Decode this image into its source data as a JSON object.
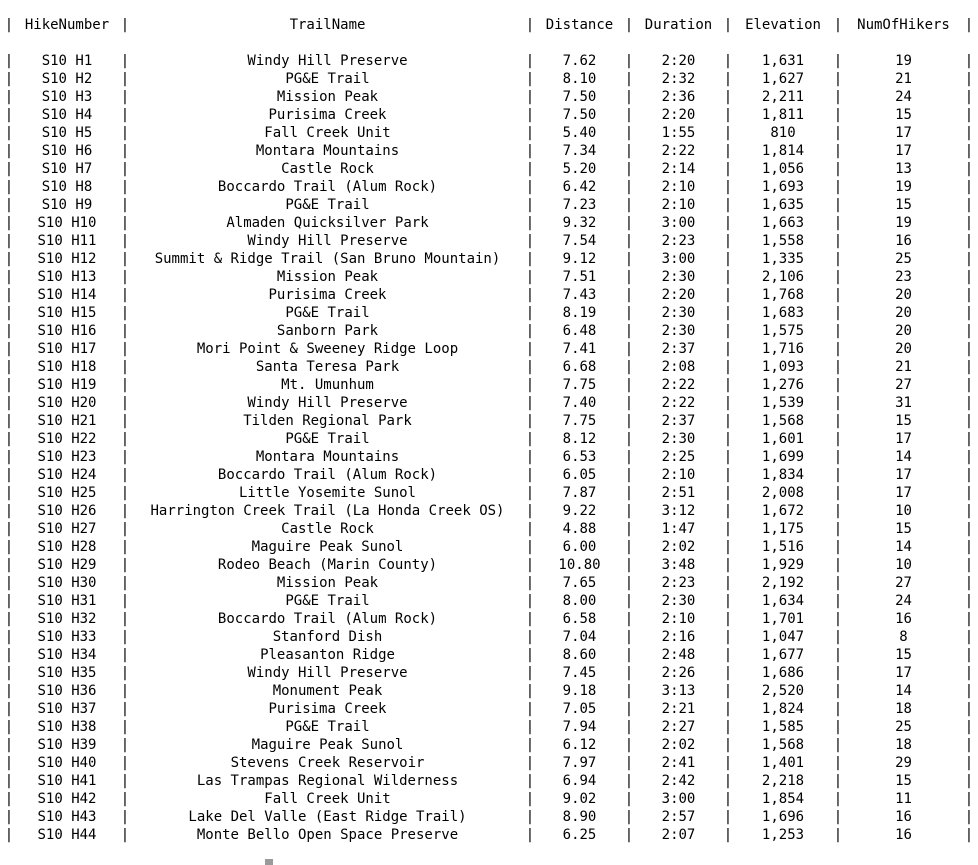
{
  "table": {
    "columns": [
      "HikeNumber",
      "TrailName",
      "Distance",
      "Duration",
      "Elevation",
      "NumOfHikers"
    ],
    "border": "+--------------+------------------------------------------------+-----------+----------+-----------+-------------+",
    "rows": [
      [
        "S10 H1",
        "Windy Hill Preserve",
        "7.62",
        "2:20",
        "1,631",
        "19"
      ],
      [
        "S10 H2",
        "PG&E Trail",
        "8.10",
        "2:32",
        "1,627",
        "21"
      ],
      [
        "S10 H3",
        "Mission Peak",
        "7.50",
        "2:36",
        "2,211",
        "24"
      ],
      [
        "S10 H4",
        "Purisima Creek",
        "7.50",
        "2:20",
        "1,811",
        "15"
      ],
      [
        "S10 H5",
        "Fall Creek Unit",
        "5.40",
        "1:55",
        "810",
        "17"
      ],
      [
        "S10 H6",
        "Montara Mountains",
        "7.34",
        "2:22",
        "1,814",
        "17"
      ],
      [
        "S10 H7",
        "Castle Rock",
        "5.20",
        "2:14",
        "1,056",
        "13"
      ],
      [
        "S10 H8",
        "Boccardo Trail (Alum Rock)",
        "6.42",
        "2:10",
        "1,693",
        "19"
      ],
      [
        "S10 H9",
        "PG&E Trail",
        "7.23",
        "2:10",
        "1,635",
        "15"
      ],
      [
        "S10 H10",
        "Almaden Quicksilver Park",
        "9.32",
        "3:00",
        "1,663",
        "19"
      ],
      [
        "S10 H11",
        "Windy Hill Preserve",
        "7.54",
        "2:23",
        "1,558",
        "16"
      ],
      [
        "S10 H12",
        "Summit & Ridge Trail (San Bruno Mountain)",
        "9.12",
        "3:00",
        "1,335",
        "25"
      ],
      [
        "S10 H13",
        "Mission Peak",
        "7.51",
        "2:30",
        "2,106",
        "23"
      ],
      [
        "S10 H14",
        "Purisima Creek",
        "7.43",
        "2:20",
        "1,768",
        "20"
      ],
      [
        "S10 H15",
        "PG&E Trail",
        "8.19",
        "2:30",
        "1,683",
        "20"
      ],
      [
        "S10 H16",
        "Sanborn Park",
        "6.48",
        "2:30",
        "1,575",
        "20"
      ],
      [
        "S10 H17",
        "Mori Point & Sweeney Ridge Loop",
        "7.41",
        "2:37",
        "1,716",
        "20"
      ],
      [
        "S10 H18",
        "Santa Teresa Park",
        "6.68",
        "2:08",
        "1,093",
        "21"
      ],
      [
        "S10 H19",
        "Mt. Umunhum",
        "7.75",
        "2:22",
        "1,276",
        "27"
      ],
      [
        "S10 H20",
        "Windy Hill Preserve",
        "7.40",
        "2:22",
        "1,539",
        "31"
      ],
      [
        "S10 H21",
        "Tilden Regional Park",
        "7.75",
        "2:37",
        "1,568",
        "15"
      ],
      [
        "S10 H22",
        "PG&E Trail",
        "8.12",
        "2:30",
        "1,601",
        "17"
      ],
      [
        "S10 H23",
        "Montara Mountains",
        "6.53",
        "2:25",
        "1,699",
        "14"
      ],
      [
        "S10 H24",
        "Boccardo Trail (Alum Rock)",
        "6.05",
        "2:10",
        "1,834",
        "17"
      ],
      [
        "S10 H25",
        "Little Yosemite Sunol",
        "7.87",
        "2:51",
        "2,008",
        "17"
      ],
      [
        "S10 H26",
        "Harrington Creek Trail (La Honda Creek OS)",
        "9.22",
        "3:12",
        "1,672",
        "10"
      ],
      [
        "S10 H27",
        "Castle Rock",
        "4.88",
        "1:47",
        "1,175",
        "15"
      ],
      [
        "S10 H28",
        "Maguire Peak Sunol",
        "6.00",
        "2:02",
        "1,516",
        "14"
      ],
      [
        "S10 H29",
        "Rodeo Beach (Marin County)",
        "10.80",
        "3:48",
        "1,929",
        "10"
      ],
      [
        "S10 H30",
        "Mission Peak",
        "7.65",
        "2:23",
        "2,192",
        "27"
      ],
      [
        "S10 H31",
        "PG&E Trail",
        "8.00",
        "2:30",
        "1,634",
        "24"
      ],
      [
        "S10 H32",
        "Boccardo Trail (Alum Rock)",
        "6.58",
        "2:10",
        "1,701",
        "16"
      ],
      [
        "S10 H33",
        "Stanford Dish",
        "7.04",
        "2:16",
        "1,047",
        "8"
      ],
      [
        "S10 H34",
        "Pleasanton Ridge",
        "8.60",
        "2:48",
        "1,677",
        "15"
      ],
      [
        "S10 H35",
        "Windy Hill Preserve",
        "7.45",
        "2:26",
        "1,686",
        "17"
      ],
      [
        "S10 H36",
        "Monument Peak",
        "9.18",
        "3:13",
        "2,520",
        "14"
      ],
      [
        "S10 H37",
        "Purisima Creek",
        "7.05",
        "2:21",
        "1,824",
        "18"
      ],
      [
        "S10 H38",
        "PG&E Trail",
        "7.94",
        "2:27",
        "1,585",
        "25"
      ],
      [
        "S10 H39",
        "Maguire Peak Sunol",
        "6.12",
        "2:02",
        "1,568",
        "18"
      ],
      [
        "S10 H40",
        "Stevens Creek Reservoir",
        "7.97",
        "2:41",
        "1,401",
        "29"
      ],
      [
        "S10 H41",
        "Las Trampas Regional Wilderness",
        "6.94",
        "2:42",
        "2,218",
        "15"
      ],
      [
        "S10 H42",
        "Fall Creek Unit",
        "9.02",
        "3:00",
        "1,854",
        "11"
      ],
      [
        "S10 H43",
        "Lake Del Valle (East Ridge Trail)",
        "8.90",
        "2:57",
        "1,696",
        "16"
      ],
      [
        "S10 H44",
        "Monte Bello Open Space Preserve",
        "6.25",
        "2:07",
        "1,253",
        "16"
      ]
    ]
  }
}
